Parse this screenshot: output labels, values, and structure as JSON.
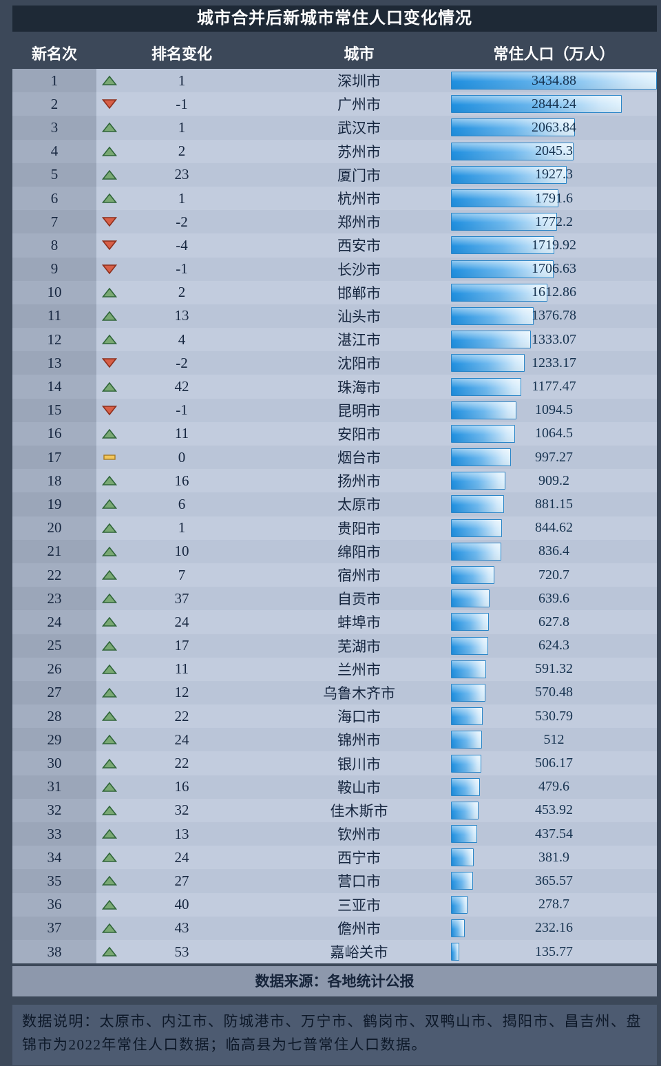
{
  "title": "城市合并后新城市常住人口变化情况",
  "header": {
    "rank": "新名次",
    "change": "排名变化",
    "city": "城市",
    "population": "常住人口（万人）"
  },
  "rows": [
    {
      "rank": "1",
      "direction": "up",
      "change": "1",
      "city": "深圳市",
      "population": "3434.88"
    },
    {
      "rank": "2",
      "direction": "down",
      "change": "-1",
      "city": "广州市",
      "population": "2844.24"
    },
    {
      "rank": "3",
      "direction": "up",
      "change": "1",
      "city": "武汉市",
      "population": "2063.84"
    },
    {
      "rank": "4",
      "direction": "up",
      "change": "2",
      "city": "苏州市",
      "population": "2045.3"
    },
    {
      "rank": "5",
      "direction": "up",
      "change": "23",
      "city": "厦门市",
      "population": "1927.3"
    },
    {
      "rank": "6",
      "direction": "up",
      "change": "1",
      "city": "杭州市",
      "population": "1791.6"
    },
    {
      "rank": "7",
      "direction": "down",
      "change": "-2",
      "city": "郑州市",
      "population": "1772.2"
    },
    {
      "rank": "8",
      "direction": "down",
      "change": "-4",
      "city": "西安市",
      "population": "1719.92"
    },
    {
      "rank": "9",
      "direction": "down",
      "change": "-1",
      "city": "长沙市",
      "population": "1706.63"
    },
    {
      "rank": "10",
      "direction": "up",
      "change": "2",
      "city": "邯郸市",
      "population": "1612.86"
    },
    {
      "rank": "11",
      "direction": "up",
      "change": "13",
      "city": "汕头市",
      "population": "1376.78"
    },
    {
      "rank": "12",
      "direction": "up",
      "change": "4",
      "city": "湛江市",
      "population": "1333.07"
    },
    {
      "rank": "13",
      "direction": "down",
      "change": "-2",
      "city": "沈阳市",
      "population": "1233.17"
    },
    {
      "rank": "14",
      "direction": "up",
      "change": "42",
      "city": "珠海市",
      "population": "1177.47"
    },
    {
      "rank": "15",
      "direction": "down",
      "change": "-1",
      "city": "昆明市",
      "population": "1094.5"
    },
    {
      "rank": "16",
      "direction": "up",
      "change": "11",
      "city": "安阳市",
      "population": "1064.5"
    },
    {
      "rank": "17",
      "direction": "flat",
      "change": "0",
      "city": "烟台市",
      "population": "997.27"
    },
    {
      "rank": "18",
      "direction": "up",
      "change": "16",
      "city": "扬州市",
      "population": "909.2"
    },
    {
      "rank": "19",
      "direction": "up",
      "change": "6",
      "city": "太原市",
      "population": "881.15"
    },
    {
      "rank": "20",
      "direction": "up",
      "change": "1",
      "city": "贵阳市",
      "population": "844.62"
    },
    {
      "rank": "21",
      "direction": "up",
      "change": "10",
      "city": "绵阳市",
      "population": "836.4"
    },
    {
      "rank": "22",
      "direction": "up",
      "change": "7",
      "city": "宿州市",
      "population": "720.7"
    },
    {
      "rank": "23",
      "direction": "up",
      "change": "37",
      "city": "自贡市",
      "population": "639.6"
    },
    {
      "rank": "24",
      "direction": "up",
      "change": "24",
      "city": "蚌埠市",
      "population": "627.8"
    },
    {
      "rank": "25",
      "direction": "up",
      "change": "17",
      "city": "芜湖市",
      "population": "624.3"
    },
    {
      "rank": "26",
      "direction": "up",
      "change": "11",
      "city": "兰州市",
      "population": "591.32"
    },
    {
      "rank": "27",
      "direction": "up",
      "change": "12",
      "city": "乌鲁木齐市",
      "population": "570.48"
    },
    {
      "rank": "28",
      "direction": "up",
      "change": "22",
      "city": "海口市",
      "population": "530.79"
    },
    {
      "rank": "29",
      "direction": "up",
      "change": "24",
      "city": "锦州市",
      "population": "512"
    },
    {
      "rank": "30",
      "direction": "up",
      "change": "22",
      "city": "银川市",
      "population": "506.17"
    },
    {
      "rank": "31",
      "direction": "up",
      "change": "16",
      "city": "鞍山市",
      "population": "479.6"
    },
    {
      "rank": "32",
      "direction": "up",
      "change": "32",
      "city": "佳木斯市",
      "population": "453.92"
    },
    {
      "rank": "33",
      "direction": "up",
      "change": "13",
      "city": "钦州市",
      "population": "437.54"
    },
    {
      "rank": "34",
      "direction": "up",
      "change": "24",
      "city": "西宁市",
      "population": "381.9"
    },
    {
      "rank": "35",
      "direction": "up",
      "change": "27",
      "city": "营口市",
      "population": "365.57"
    },
    {
      "rank": "36",
      "direction": "up",
      "change": "40",
      "city": "三亚市",
      "population": "278.7"
    },
    {
      "rank": "37",
      "direction": "up",
      "change": "43",
      "city": "儋州市",
      "population": "232.16"
    },
    {
      "rank": "38",
      "direction": "up",
      "change": "53",
      "city": "嘉峪关市",
      "population": "135.77"
    }
  ],
  "source": "数据来源：各地统计公报",
  "note": "数据说明：太原市、内江市、防城港市、万宁市、鹤岗市、双鸭山市、揭阳市、昌吉州、盘锦市为2022年常住人口数据；临高县为七普常住人口数据。",
  "icons": {
    "up": "up-triangle-icon",
    "down": "down-triangle-icon",
    "flat": "flat-dash-icon"
  },
  "colors": {
    "frame_background": "#3c4859",
    "title_background": "#1e2936",
    "row_background": "#bac5d8",
    "row_background_alt": "#c2ccde",
    "rank_column_background": "#9ba6b9",
    "bar_fill_start": "#1f8fdf",
    "bar_fill_end": "#dff1fc",
    "bar_border": "#2a85c7",
    "up_icon": "#79a873",
    "down_icon": "#d75f47",
    "flat_icon": "#f3c65a",
    "source_band_background": "#8d98ac",
    "note_background": "#4d5b71"
  },
  "chart_data": {
    "type": "bar",
    "orientation": "horizontal",
    "title": "城市合并后新城市常住人口变化情况",
    "value_axis_label": "常住人口（万人）",
    "categories": [
      "深圳市",
      "广州市",
      "武汉市",
      "苏州市",
      "厦门市",
      "杭州市",
      "郑州市",
      "西安市",
      "长沙市",
      "邯郸市",
      "汕头市",
      "湛江市",
      "沈阳市",
      "珠海市",
      "昆明市",
      "安阳市",
      "烟台市",
      "扬州市",
      "太原市",
      "贵阳市",
      "绵阳市",
      "宿州市",
      "自贡市",
      "蚌埠市",
      "芜湖市",
      "兰州市",
      "乌鲁木齐市",
      "海口市",
      "锦州市",
      "银川市",
      "鞍山市",
      "佳木斯市",
      "钦州市",
      "西宁市",
      "营口市",
      "三亚市",
      "儋州市",
      "嘉峪关市"
    ],
    "values": [
      3434.88,
      2844.24,
      2063.84,
      2045.3,
      1927.3,
      1791.6,
      1772.2,
      1719.92,
      1706.63,
      1612.86,
      1376.78,
      1333.07,
      1233.17,
      1177.47,
      1094.5,
      1064.5,
      997.27,
      909.2,
      881.15,
      844.62,
      836.4,
      720.7,
      639.6,
      627.8,
      624.3,
      591.32,
      570.48,
      530.79,
      512,
      506.17,
      479.6,
      453.92,
      437.54,
      381.9,
      365.57,
      278.7,
      232.16,
      135.77
    ],
    "ranks": [
      1,
      2,
      3,
      4,
      5,
      6,
      7,
      8,
      9,
      10,
      11,
      12,
      13,
      14,
      15,
      16,
      17,
      18,
      19,
      20,
      21,
      22,
      23,
      24,
      25,
      26,
      27,
      28,
      29,
      30,
      31,
      32,
      33,
      34,
      35,
      36,
      37,
      38
    ],
    "rank_changes": [
      1,
      -1,
      1,
      2,
      23,
      1,
      -2,
      -4,
      -1,
      2,
      13,
      4,
      -2,
      42,
      -1,
      11,
      0,
      16,
      6,
      1,
      10,
      7,
      37,
      24,
      17,
      11,
      12,
      22,
      24,
      22,
      16,
      32,
      13,
      24,
      27,
      40,
      43,
      53
    ],
    "xlim": [
      0,
      3434.88
    ],
    "grid": false,
    "legend": false
  }
}
